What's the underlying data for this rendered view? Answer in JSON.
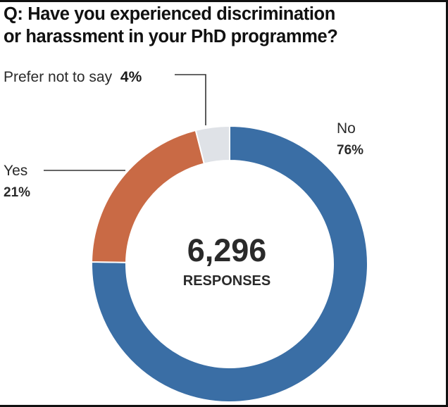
{
  "chart_data": {
    "type": "pie",
    "style": "donut",
    "title": [
      "Q: Have you experienced discrimination",
      "or harassment in your PhD programme?"
    ],
    "slices": [
      {
        "label": "No",
        "value": 76,
        "value_text": "76%",
        "color": "#3a6ea5"
      },
      {
        "label": "Yes",
        "value": 21,
        "value_text": "21%",
        "color": "#c96a45"
      },
      {
        "label": "Prefer not to say",
        "value": 4,
        "value_text": "4%",
        "color": "#dfe2e7"
      }
    ],
    "center": {
      "value": "6,296",
      "label": "RESPONSES"
    }
  }
}
